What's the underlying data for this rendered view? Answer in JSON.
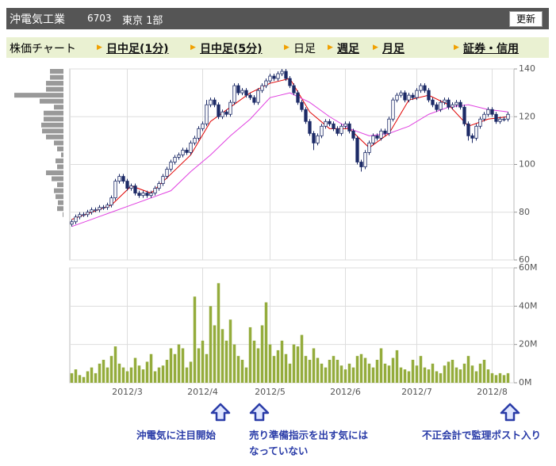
{
  "header": {
    "title": "沖電気工業",
    "code": "6703",
    "market": "東京 1部",
    "button": "更新"
  },
  "tabs": [
    "株価チャート",
    "日中足(1分)",
    "日中足(5分)",
    "日足",
    "週足",
    "月足",
    "証券・信用"
  ],
  "chart_data": {
    "type": "candlestick",
    "xlim": [
      -0.5,
      111.5
    ],
    "xticks": [
      {
        "value": 14,
        "label": "2012/3"
      },
      {
        "value": 33,
        "label": "2012/4"
      },
      {
        "value": 50,
        "label": "2012/5"
      },
      {
        "value": 69,
        "label": "2012/6"
      },
      {
        "value": 87,
        "label": "2012/7"
      },
      {
        "value": 106,
        "label": "2012/8"
      }
    ],
    "ylim": [
      60,
      140
    ],
    "yticks": [
      60,
      80,
      100,
      120,
      140
    ],
    "grid": true,
    "up_color": "#ffffff",
    "down_color": "#1c2a66",
    "ohlc": [
      [
        75,
        77,
        74,
        76
      ],
      [
        76,
        79,
        75,
        78
      ],
      [
        78,
        80,
        77,
        79
      ],
      [
        79,
        80,
        78,
        79
      ],
      [
        79,
        81,
        78,
        80
      ],
      [
        80,
        82,
        79,
        81
      ],
      [
        81,
        82,
        80,
        81
      ],
      [
        81,
        83,
        80,
        82
      ],
      [
        82,
        83,
        81,
        82
      ],
      [
        82,
        84,
        81,
        83
      ],
      [
        83,
        87,
        82,
        86
      ],
      [
        86,
        94,
        85,
        93
      ],
      [
        93,
        96,
        92,
        95
      ],
      [
        95,
        96,
        92,
        93
      ],
      [
        93,
        94,
        89,
        90
      ],
      [
        90,
        92,
        89,
        91
      ],
      [
        91,
        92,
        87,
        88
      ],
      [
        88,
        89,
        86,
        87
      ],
      [
        87,
        89,
        86,
        88
      ],
      [
        88,
        89,
        86,
        87
      ],
      [
        87,
        89,
        86,
        88
      ],
      [
        88,
        91,
        87,
        90
      ],
      [
        90,
        93,
        89,
        92
      ],
      [
        92,
        96,
        91,
        95
      ],
      [
        95,
        99,
        94,
        98
      ],
      [
        98,
        102,
        97,
        101
      ],
      [
        101,
        104,
        100,
        103
      ],
      [
        103,
        105,
        102,
        104
      ],
      [
        104,
        107,
        103,
        106
      ],
      [
        106,
        107,
        104,
        105
      ],
      [
        105,
        110,
        104,
        109
      ],
      [
        109,
        112,
        108,
        111
      ],
      [
        111,
        116,
        110,
        115
      ],
      [
        115,
        118,
        114,
        117
      ],
      [
        117,
        127,
        116,
        125
      ],
      [
        125,
        128,
        124,
        127
      ],
      [
        127,
        128,
        124,
        125
      ],
      [
        125,
        126,
        119,
        120
      ],
      [
        120,
        123,
        119,
        122
      ],
      [
        122,
        123,
        120,
        121
      ],
      [
        121,
        127,
        120,
        126
      ],
      [
        126,
        134,
        125,
        133
      ],
      [
        133,
        134,
        129,
        130
      ],
      [
        130,
        132,
        129,
        131
      ],
      [
        131,
        132,
        128,
        129
      ],
      [
        129,
        130,
        127,
        128
      ],
      [
        128,
        129,
        125,
        126
      ],
      [
        126,
        132,
        125,
        131
      ],
      [
        131,
        134,
        130,
        133
      ],
      [
        133,
        136,
        132,
        135
      ],
      [
        135,
        138,
        134,
        137
      ],
      [
        137,
        138,
        135,
        136
      ],
      [
        136,
        139,
        135,
        138
      ],
      [
        138,
        140,
        137,
        139
      ],
      [
        139,
        140,
        135,
        136
      ],
      [
        136,
        137,
        132,
        133
      ],
      [
        133,
        134,
        129,
        130
      ],
      [
        130,
        131,
        125,
        126
      ],
      [
        126,
        127,
        122,
        123
      ],
      [
        123,
        124,
        117,
        118
      ],
      [
        118,
        119,
        112,
        113
      ],
      [
        113,
        114,
        106,
        109
      ],
      [
        109,
        113,
        108,
        112
      ],
      [
        112,
        117,
        111,
        116
      ],
      [
        116,
        119,
        115,
        118
      ],
      [
        118,
        119,
        116,
        117
      ],
      [
        117,
        118,
        114,
        115
      ],
      [
        115,
        116,
        112,
        113
      ],
      [
        113,
        117,
        112,
        116
      ],
      [
        116,
        118,
        115,
        117
      ],
      [
        117,
        118,
        113,
        114
      ],
      [
        114,
        115,
        110,
        111
      ],
      [
        111,
        112,
        100,
        101
      ],
      [
        101,
        102,
        97,
        99
      ],
      [
        99,
        106,
        98,
        105
      ],
      [
        105,
        110,
        104,
        109
      ],
      [
        109,
        113,
        108,
        112
      ],
      [
        112,
        113,
        110,
        111
      ],
      [
        111,
        115,
        110,
        114
      ],
      [
        114,
        115,
        112,
        113
      ],
      [
        113,
        120,
        112,
        119
      ],
      [
        119,
        128,
        118,
        127
      ],
      [
        127,
        130,
        126,
        129
      ],
      [
        129,
        131,
        128,
        130
      ],
      [
        130,
        131,
        126,
        127
      ],
      [
        127,
        130,
        126,
        129
      ],
      [
        129,
        130,
        127,
        128
      ],
      [
        128,
        132,
        127,
        131
      ],
      [
        131,
        134,
        130,
        133
      ],
      [
        133,
        134,
        130,
        131
      ],
      [
        131,
        132,
        126,
        127
      ],
      [
        127,
        128,
        124,
        125
      ],
      [
        125,
        126,
        122,
        123
      ],
      [
        123,
        127,
        122,
        126
      ],
      [
        126,
        128,
        125,
        127
      ],
      [
        127,
        128,
        123,
        124
      ],
      [
        124,
        126,
        123,
        125
      ],
      [
        125,
        127,
        124,
        126
      ],
      [
        126,
        127,
        123,
        124
      ],
      [
        124,
        125,
        116,
        117
      ],
      [
        117,
        118,
        110,
        112
      ],
      [
        112,
        113,
        109,
        111
      ],
      [
        111,
        117,
        110,
        116
      ],
      [
        116,
        120,
        115,
        119
      ],
      [
        119,
        122,
        118,
        121
      ],
      [
        121,
        124,
        120,
        123
      ],
      [
        123,
        124,
        120,
        121
      ],
      [
        121,
        122,
        117,
        118
      ],
      [
        118,
        120,
        117,
        119
      ],
      [
        119,
        120,
        118,
        119
      ],
      [
        119,
        122,
        118,
        121
      ]
    ],
    "moving_averages": [
      {
        "color": "#e00000",
        "x": [
          0,
          5,
          10,
          15,
          20,
          25,
          30,
          35,
          40,
          45,
          50,
          55,
          60,
          65,
          70,
          75,
          80,
          85,
          90,
          95,
          100,
          105,
          110
        ],
        "values": [
          77,
          80,
          83,
          91,
          88,
          96,
          104,
          118,
          124,
          130,
          134,
          136,
          122,
          115,
          115,
          107,
          113,
          127,
          129,
          125,
          116,
          119,
          120
        ]
      },
      {
        "color": "#e040e0",
        "x": [
          0,
          5,
          10,
          15,
          20,
          25,
          30,
          35,
          40,
          45,
          50,
          55,
          60,
          65,
          70,
          75,
          80,
          85,
          90,
          95,
          100,
          105,
          110
        ],
        "values": [
          74,
          77,
          80,
          83,
          86,
          89,
          97,
          104,
          112,
          119,
          128,
          130,
          126,
          120,
          115,
          112,
          113,
          116,
          121,
          124,
          125,
          123,
          122
        ]
      }
    ],
    "price_volume": {
      "color": "#999999",
      "prices": [
        139,
        136.5,
        134,
        131.5,
        129,
        126.5,
        124,
        121.5,
        119,
        116.5,
        114,
        111.5,
        109,
        106.5,
        104,
        101.5,
        99,
        96.5,
        94,
        91.5,
        89,
        86.5,
        84,
        81.5,
        79
      ],
      "values": [
        17,
        17,
        22,
        22,
        62,
        30,
        12,
        25,
        25,
        28,
        27,
        22,
        12,
        8,
        3,
        10,
        8,
        22,
        15,
        8,
        12,
        10,
        7,
        8,
        1
      ]
    },
    "volume": {
      "color": "#94ac3c",
      "ylim": [
        0,
        60
      ],
      "yticks": [
        {
          "value": 0,
          "label": "0M"
        },
        {
          "value": 20,
          "label": "20M"
        },
        {
          "value": 40,
          "label": "40M"
        },
        {
          "value": 60,
          "label": "60M"
        }
      ],
      "values": [
        5,
        7,
        4,
        3,
        6,
        8,
        5,
        10,
        12,
        8,
        14,
        19,
        10,
        8,
        6,
        8,
        13,
        9,
        7,
        11,
        15,
        6,
        8,
        9,
        12,
        18,
        15,
        20,
        18,
        8,
        11,
        45,
        18,
        22,
        15,
        40,
        30,
        52,
        28,
        22,
        33,
        20,
        14,
        12,
        8,
        29,
        22,
        18,
        30,
        42,
        20,
        14,
        17,
        22,
        15,
        10,
        20,
        19,
        25,
        14,
        12,
        18,
        13,
        10,
        8,
        12,
        14,
        12,
        9,
        7,
        10,
        8,
        14,
        15,
        13,
        10,
        8,
        12,
        18,
        10,
        9,
        13,
        17,
        8,
        7,
        6,
        12,
        9,
        14,
        8,
        7,
        10,
        6,
        5,
        9,
        11,
        12,
        8,
        7,
        10,
        14,
        9,
        6,
        10,
        12,
        7,
        5,
        4,
        5,
        4,
        5
      ]
    },
    "annotations": [
      [
        "沖電気に注目開始"
      ],
      [
        "売り準備指示を出す気には",
        "なっていない"
      ],
      [
        "不正会計で監理ポスト入り"
      ]
    ]
  }
}
